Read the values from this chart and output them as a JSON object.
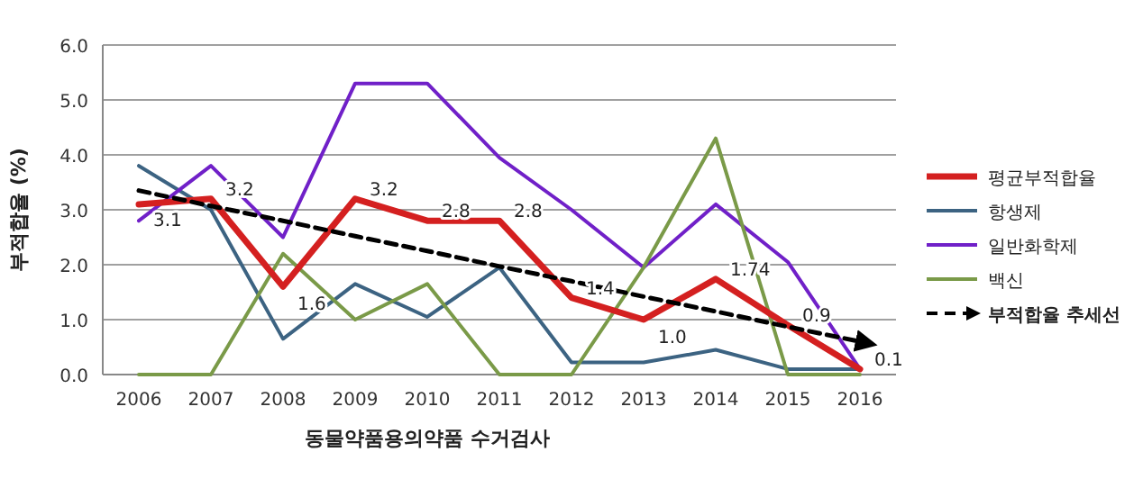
{
  "chart_data": {
    "type": "line",
    "xlabel": "동물약품용의약품 수거검사",
    "ylabel": "부적합율 (%)",
    "categories": [
      "2006",
      "2007",
      "2008",
      "2009",
      "2010",
      "2011",
      "2012",
      "2013",
      "2014",
      "2015",
      "2016"
    ],
    "ylim": [
      0,
      6
    ],
    "yticks": [
      {
        "value": 0,
        "label": "0.0"
      },
      {
        "value": 1,
        "label": "1.0"
      },
      {
        "value": 2,
        "label": "2.0"
      },
      {
        "value": 3,
        "label": "3.0"
      },
      {
        "value": 4,
        "label": "4.0"
      },
      {
        "value": 5,
        "label": "5.0"
      },
      {
        "value": 6,
        "label": "6.0"
      }
    ],
    "grid": "y",
    "legend": "right",
    "series": [
      {
        "name": "항생제",
        "color": "#3c6382",
        "values": [
          3.8,
          3.0,
          0.65,
          1.65,
          1.05,
          1.95,
          0.22,
          0.22,
          0.45,
          0.1,
          0.1
        ]
      },
      {
        "name": "일반화학제",
        "color": "#7020c8",
        "values": [
          2.8,
          3.8,
          2.5,
          5.3,
          5.3,
          3.95,
          3.0,
          1.95,
          3.1,
          2.05,
          0.1
        ]
      },
      {
        "name": "백신",
        "color": "#7a9a48",
        "values": [
          0,
          0,
          2.2,
          1.0,
          1.65,
          0,
          0,
          1.95,
          4.3,
          0,
          0
        ]
      },
      {
        "name": "평균부적합율",
        "color": "#d42020",
        "values": [
          3.1,
          3.2,
          1.6,
          3.2,
          2.8,
          2.8,
          1.4,
          1.0,
          1.74,
          0.9,
          0.1
        ],
        "value_labels": [
          "3.1",
          "3.2",
          "1.6",
          "3.2",
          "2.8",
          "2.8",
          "1.4",
          "1.0",
          "1.74",
          "0.9",
          "0.1"
        ]
      },
      {
        "name": "부적합율 추세선",
        "color": "#000000",
        "line_style": "dashed",
        "values": [
          3.35,
          3.07,
          2.8,
          2.52,
          2.25,
          1.97,
          1.7,
          1.42,
          1.15,
          0.87,
          0.6
        ]
      }
    ]
  }
}
